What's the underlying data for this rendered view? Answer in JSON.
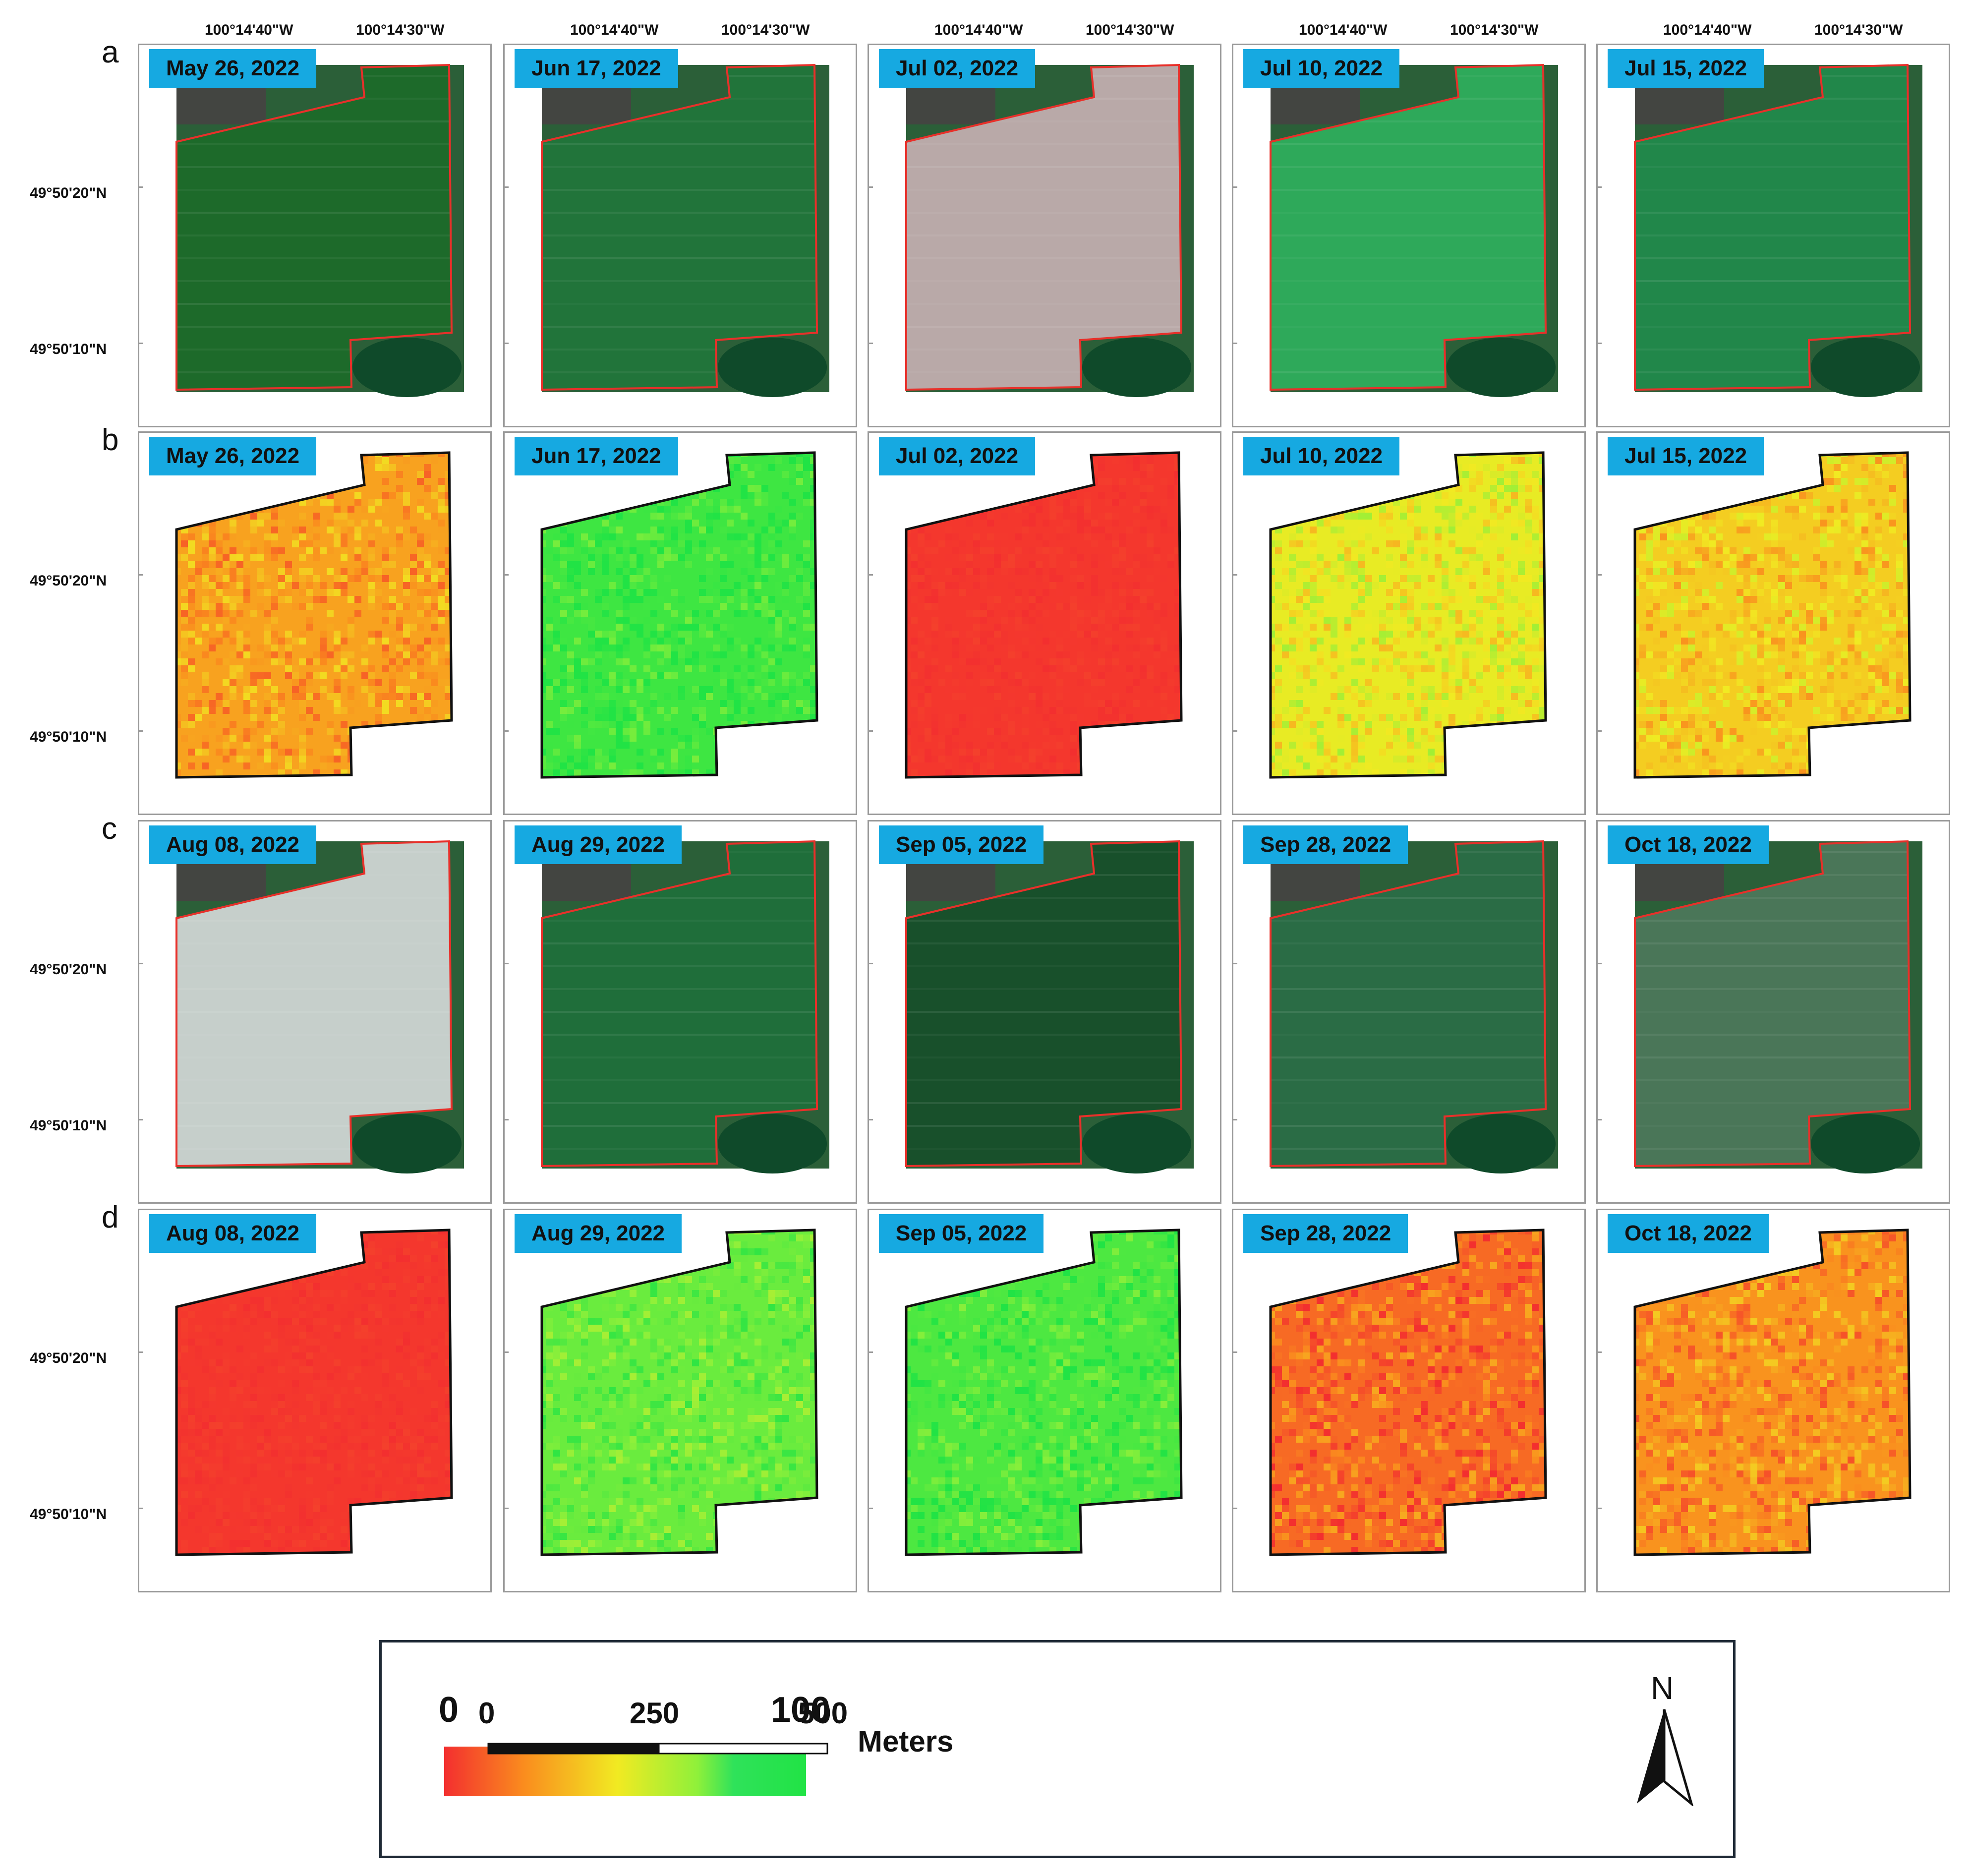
{
  "rows": [
    {
      "letter": "a",
      "kind": "rgb",
      "dates": [
        "May 26, 2022",
        "Jun 17, 2022",
        "Jul 02, 2022",
        "Jul 10, 2022",
        "Jul 15, 2022"
      ]
    },
    {
      "letter": "b",
      "kind": "index",
      "dates": [
        "May 26, 2022",
        "Jun 17, 2022",
        "Jul 02, 2022",
        "Jul 10, 2022",
        "Jul 15, 2022"
      ]
    },
    {
      "letter": "c",
      "kind": "rgb",
      "dates": [
        "Aug 08, 2022",
        "Aug 29, 2022",
        "Sep 05, 2022",
        "Sep 28, 2022",
        "Oct 18, 2022"
      ]
    },
    {
      "letter": "d",
      "kind": "index",
      "dates": [
        "Aug 08, 2022",
        "Aug 29, 2022",
        "Sep 05, 2022",
        "Sep 28, 2022",
        "Oct 18, 2022"
      ]
    }
  ],
  "longitude_labels": [
    "100°14'40\"W",
    "100°14'30\"W"
  ],
  "latitude_labels": [
    "49°50'20\"N",
    "49°50'10\"N"
  ],
  "legend": {
    "scale_min": "0",
    "scale_max": "100",
    "scalebar_ticks": [
      "0",
      "250",
      "500"
    ],
    "scalebar_unit": "Meters",
    "north_label": "N"
  },
  "colors": {
    "badge": "#16a9e1",
    "field_outline_rgb": "#e8302a",
    "field_outline_index": "#111111",
    "ramp": [
      "#f32f2f",
      "#fa8c1e",
      "#f1ea22",
      "#8ff03a",
      "#21e345"
    ]
  },
  "index_fill_levels": {
    "b": [
      28,
      92,
      2,
      50,
      40
    ],
    "d": [
      2,
      80,
      88,
      14,
      24
    ]
  },
  "rgb_scene_tones": {
    "a": [
      "#1d6a2a",
      "#21743a",
      "#b9a9a8",
      "#2ea95a",
      "#21874a"
    ],
    "c": [
      "#c6cfcb",
      "#1f6e3a",
      "#18502b",
      "#2a6c45",
      "#4a7658"
    ]
  }
}
